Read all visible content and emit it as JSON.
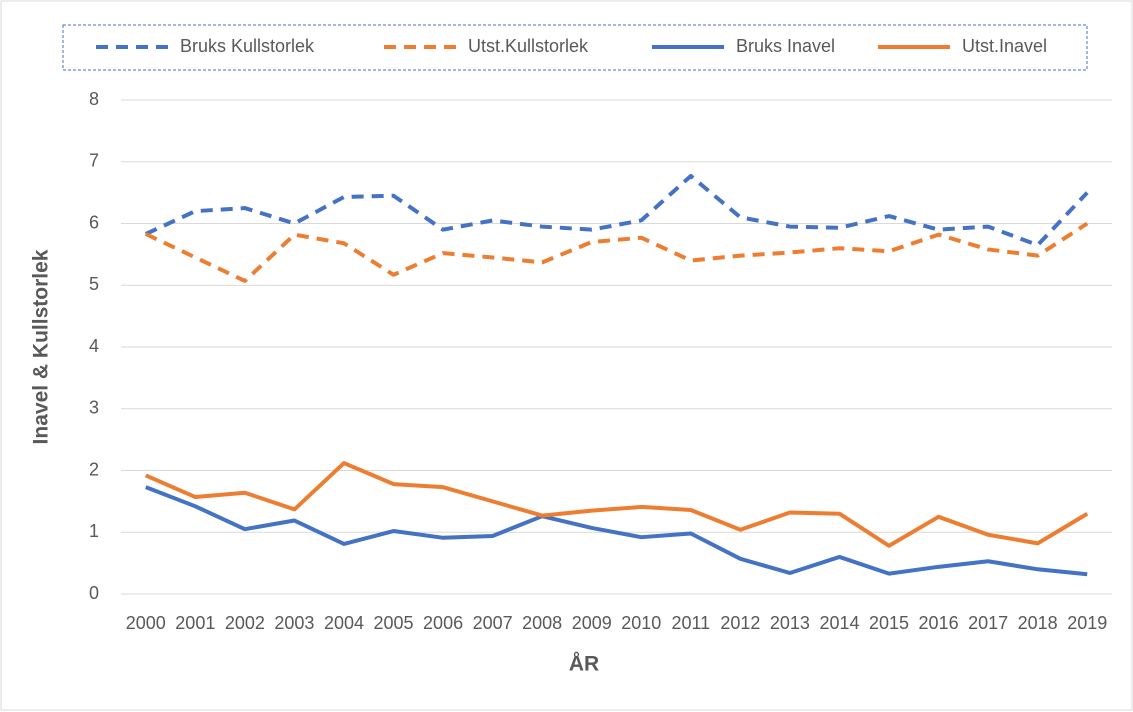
{
  "chart_data": {
    "type": "line",
    "categories": [
      "2000",
      "2001",
      "2002",
      "2003",
      "2004",
      "2005",
      "2006",
      "2007",
      "2008",
      "2009",
      "2010",
      "2011",
      "2012",
      "2013",
      "2014",
      "2015",
      "2016",
      "2017",
      "2018",
      "2019"
    ],
    "series": [
      {
        "name": "Bruks Kullstorlek",
        "color": "#4472c4",
        "dash": true,
        "values": [
          5.83,
          6.2,
          6.25,
          6.0,
          6.43,
          6.45,
          5.9,
          6.05,
          5.95,
          5.9,
          6.05,
          6.77,
          6.1,
          5.95,
          5.93,
          6.12,
          5.9,
          5.95,
          5.65,
          6.5
        ]
      },
      {
        "name": "Utst.Kullstorlek",
        "color": "#ed7d31",
        "dash": true,
        "values": [
          5.83,
          5.45,
          5.07,
          5.82,
          5.68,
          5.17,
          5.52,
          5.45,
          5.37,
          5.7,
          5.77,
          5.4,
          5.48,
          5.53,
          5.6,
          5.55,
          5.82,
          5.58,
          5.48,
          6.0
        ]
      },
      {
        "name": "Bruks Inavel",
        "color": "#4472c4",
        "dash": false,
        "values": [
          1.73,
          1.42,
          1.05,
          1.19,
          0.81,
          1.02,
          0.91,
          0.94,
          1.26,
          1.07,
          0.92,
          0.98,
          0.57,
          0.34,
          0.6,
          0.33,
          0.44,
          0.53,
          0.4,
          0.32
        ]
      },
      {
        "name": "Utst.Inavel",
        "color": "#ed7d31",
        "dash": false,
        "values": [
          1.92,
          1.57,
          1.64,
          1.37,
          2.12,
          1.78,
          1.73,
          1.5,
          1.27,
          1.35,
          1.41,
          1.36,
          1.04,
          1.32,
          1.3,
          0.78,
          1.25,
          0.96,
          0.82,
          1.3
        ]
      }
    ],
    "xlabel": "ÅR",
    "ylabel": "Inavel & Kullstorlek",
    "ylim": [
      0,
      8
    ],
    "yticks": [
      0,
      1,
      2,
      3,
      4,
      5,
      6,
      7,
      8
    ],
    "grid": true,
    "legend": "top"
  }
}
